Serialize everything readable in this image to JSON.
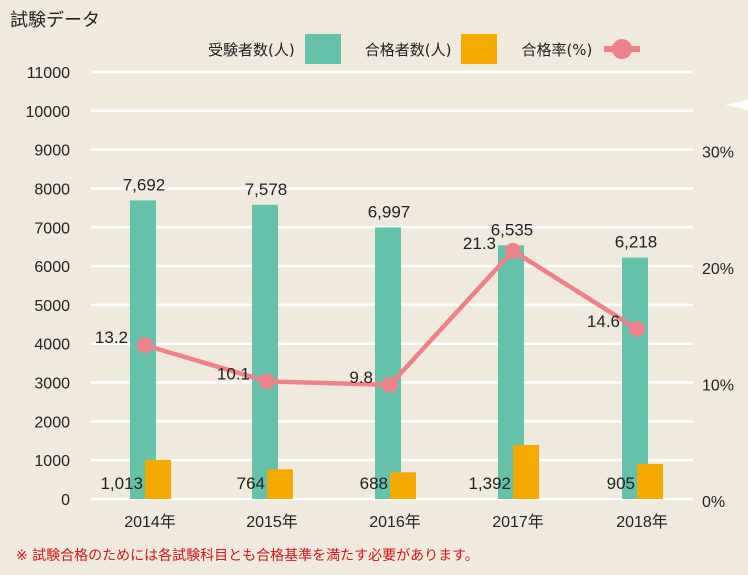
{
  "chart_data": {
    "type": "bar",
    "title": "試験データ",
    "categories": [
      "2014年",
      "2015年",
      "2016年",
      "2017年",
      "2018年"
    ],
    "series": [
      {
        "name": "受験者数(人)",
        "type": "bar",
        "axis": "left",
        "color": "#64c1aa",
        "values": [
          7692,
          7578,
          6997,
          6535,
          6218
        ],
        "labels": [
          "7,692",
          "7,578",
          "6,997",
          "6,535",
          "6,218"
        ]
      },
      {
        "name": "合格者数(人)",
        "type": "bar",
        "axis": "left",
        "color": "#f5aa00",
        "values": [
          1013,
          764,
          688,
          1392,
          905
        ],
        "labels": [
          "1,013",
          "764",
          "688",
          "1,392",
          "905"
        ]
      },
      {
        "name": "合格率(%)",
        "type": "line",
        "axis": "right",
        "color": "#ee8189",
        "values": [
          13.2,
          10.1,
          9.8,
          21.3,
          14.6
        ],
        "labels": [
          "13.2",
          "10.1",
          "9.8",
          "21.3",
          "14.6"
        ]
      }
    ],
    "left_axis": {
      "ylim": [
        0,
        11000
      ],
      "ticks": [
        "0",
        "1000",
        "2000",
        "3000",
        "4000",
        "5000",
        "6000",
        "7000",
        "8000",
        "9000",
        "10000",
        "11000"
      ]
    },
    "right_axis": {
      "ylim": [
        0,
        30
      ],
      "ticks": [
        "0%",
        "10%",
        "20%",
        "30%"
      ]
    },
    "grid": true,
    "legend_position": "top-right"
  },
  "note": "※ 試験合格のためには各試験科目とも合格基準を満たす必要があります。"
}
